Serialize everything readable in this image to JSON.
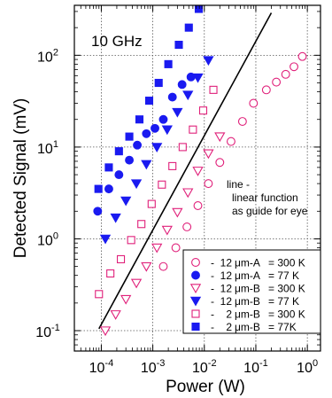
{
  "chart_data": {
    "type": "scatter",
    "x_scale": "log",
    "y_scale": "log",
    "xlim": [
      3e-05,
      1.8
    ],
    "ylim": [
      0.06,
      350
    ],
    "grid": true,
    "legend_position": "bottom-right",
    "xlabel": "Power (W)",
    "ylabel": "Detected Signal (mV)",
    "annotation": "10 GHz",
    "line_note": [
      "line -",
      "linear function",
      "as guide for eye"
    ],
    "x_ticks": [
      {
        "value": 0.0001,
        "base": "10",
        "exp": "-4"
      },
      {
        "value": 0.001,
        "base": "10",
        "exp": "-3"
      },
      {
        "value": 0.01,
        "base": "10",
        "exp": "-2"
      },
      {
        "value": 0.1,
        "base": "10",
        "exp": "-1"
      },
      {
        "value": 1,
        "base": "10",
        "exp": "0"
      }
    ],
    "y_ticks": [
      {
        "value": 0.1,
        "base": "10",
        "exp": "-1"
      },
      {
        "value": 1,
        "base": "10",
        "exp": "0"
      },
      {
        "value": 10,
        "base": "10",
        "exp": "1"
      },
      {
        "value": 100,
        "base": "10",
        "exp": "2"
      }
    ],
    "guide_line": {
      "x": [
        9e-05,
        0.2
      ],
      "y": [
        0.105,
        290
      ],
      "color": "#000000"
    },
    "series": [
      {
        "name": "- 12 µm-A = 300 K",
        "marker": "circle",
        "filled": false,
        "color": "#e0207a",
        "points": [
          [
            0.0016,
            0.5
          ],
          [
            0.0028,
            0.8
          ],
          [
            0.0046,
            1.35
          ],
          [
            0.0075,
            2.3
          ],
          [
            0.012,
            4.0
          ],
          [
            0.02,
            6.8
          ],
          [
            0.033,
            11.5
          ],
          [
            0.055,
            19
          ],
          [
            0.09,
            30
          ],
          [
            0.16,
            42
          ],
          [
            0.25,
            51
          ],
          [
            0.38,
            62
          ],
          [
            0.55,
            75
          ],
          [
            0.8,
            97
          ]
        ]
      },
      {
        "name": "- 12 µm-A = 77 K",
        "marker": "circle",
        "filled": true,
        "color": "#1a1af0",
        "points": [
          [
            8.5e-05,
            2.0
          ],
          [
            0.00014,
            3.5
          ],
          [
            0.00022,
            5.0
          ],
          [
            0.00035,
            7.2
          ],
          [
            0.0005,
            10.5
          ],
          [
            0.00075,
            14
          ],
          [
            0.0011,
            16
          ],
          [
            0.0016,
            20
          ],
          [
            0.0024,
            35
          ],
          [
            0.0037,
            48
          ],
          [
            0.0055,
            58
          ]
        ]
      },
      {
        "name": "- 12 µm-B = 300 K",
        "marker": "triangle-down",
        "filled": false,
        "color": "#e0207a",
        "points": [
          [
            0.00012,
            0.1
          ],
          [
            0.00019,
            0.15
          ],
          [
            0.0003,
            0.22
          ],
          [
            0.00048,
            0.33
          ],
          [
            0.00075,
            0.5
          ],
          [
            0.0012,
            0.8
          ],
          [
            0.0019,
            1.25
          ],
          [
            0.003,
            1.95
          ],
          [
            0.0048,
            3.2
          ],
          [
            0.0075,
            5.5
          ],
          [
            0.012,
            8.5
          ],
          [
            0.02,
            13
          ]
        ]
      },
      {
        "name": "- 12 µm-B = 77 K",
        "marker": "triangle-down",
        "filled": true,
        "color": "#1a1af0",
        "points": [
          [
            0.00012,
            1.0
          ],
          [
            0.00019,
            1.7
          ],
          [
            0.0003,
            2.6
          ],
          [
            0.00048,
            4.0
          ],
          [
            0.00075,
            6.5
          ],
          [
            0.0012,
            10
          ],
          [
            0.0019,
            15.5
          ],
          [
            0.003,
            24
          ],
          [
            0.0048,
            37
          ],
          [
            0.0075,
            57
          ],
          [
            0.012,
            88
          ]
        ]
      },
      {
        "name": "- 2 µm-B = 300 K",
        "marker": "square",
        "filled": false,
        "color": "#e0207a",
        "points": [
          [
            9e-05,
            0.25
          ],
          [
            0.00015,
            0.42
          ],
          [
            0.00024,
            0.6
          ],
          [
            0.00038,
            0.97
          ],
          [
            0.0006,
            1.45
          ],
          [
            0.00095,
            2.4
          ],
          [
            0.0015,
            3.9
          ],
          [
            0.0024,
            6.2
          ],
          [
            0.0038,
            10
          ],
          [
            0.006,
            15.5
          ],
          [
            0.0095,
            25
          ],
          [
            0.015,
            42
          ]
        ]
      },
      {
        "name": "- 2 µm-B = 77K",
        "marker": "square",
        "filled": true,
        "color": "#1a1af0",
        "points": [
          [
            8.8e-05,
            3.5
          ],
          [
            0.00014,
            6.0
          ],
          [
            0.00022,
            9.0
          ],
          [
            0.00035,
            13
          ],
          [
            0.00055,
            20
          ],
          [
            0.00085,
            32
          ],
          [
            0.0013,
            50
          ],
          [
            0.002,
            80
          ],
          [
            0.0032,
            130
          ],
          [
            0.005,
            200
          ],
          [
            0.0078,
            320
          ]
        ]
      }
    ],
    "legend": [
      {
        "marker": "circle",
        "filled": false,
        "color": "#e0207a",
        "size": "12",
        "label": "μm-A",
        "temp": "= 300 K"
      },
      {
        "marker": "circle",
        "filled": true,
        "color": "#1a1af0",
        "size": "12",
        "label": "μm-A",
        "temp": "= 77 K"
      },
      {
        "marker": "triangle-down",
        "filled": false,
        "color": "#e0207a",
        "size": "12",
        "label": "μm-B",
        "temp": "= 300 K"
      },
      {
        "marker": "triangle-down",
        "filled": true,
        "color": "#1a1af0",
        "size": "12",
        "label": "μm-B",
        "temp": "= 77 K"
      },
      {
        "marker": "square",
        "filled": false,
        "color": "#e0207a",
        "size": "2",
        "label": "μm-B",
        "temp": "= 300 K"
      },
      {
        "marker": "square",
        "filled": true,
        "color": "#1a1af0",
        "size": "2",
        "label": "μm-B",
        "temp": "= 77K"
      }
    ]
  }
}
